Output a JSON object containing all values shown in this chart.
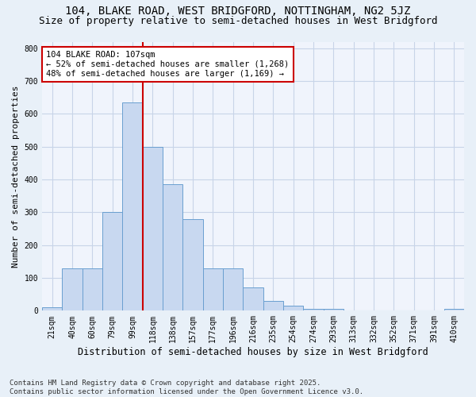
{
  "title_line1": "104, BLAKE ROAD, WEST BRIDGFORD, NOTTINGHAM, NG2 5JZ",
  "title_line2": "Size of property relative to semi-detached houses in West Bridgford",
  "xlabel": "Distribution of semi-detached houses by size in West Bridgford",
  "ylabel": "Number of semi-detached properties",
  "footer": "Contains HM Land Registry data © Crown copyright and database right 2025.\nContains public sector information licensed under the Open Government Licence v3.0.",
  "bins": [
    "21sqm",
    "40sqm",
    "60sqm",
    "79sqm",
    "99sqm",
    "118sqm",
    "138sqm",
    "157sqm",
    "177sqm",
    "196sqm",
    "216sqm",
    "235sqm",
    "254sqm",
    "274sqm",
    "293sqm",
    "313sqm",
    "332sqm",
    "352sqm",
    "371sqm",
    "391sqm",
    "410sqm"
  ],
  "values": [
    10,
    130,
    130,
    300,
    635,
    500,
    385,
    280,
    130,
    130,
    70,
    30,
    15,
    5,
    5,
    0,
    0,
    0,
    0,
    0,
    5
  ],
  "bar_color": "#c8d8f0",
  "bar_edge_color": "#6a9fd0",
  "marker_label": "104 BLAKE ROAD: 107sqm\n← 52% of semi-detached houses are smaller (1,268)\n48% of semi-detached houses are larger (1,169) →",
  "vline_color": "#cc0000",
  "annotation_box_color": "#ffffff",
  "annotation_box_edge": "#cc0000",
  "vline_x": 4.5,
  "ylim": [
    0,
    820
  ],
  "yticks": [
    0,
    100,
    200,
    300,
    400,
    500,
    600,
    700,
    800
  ],
  "background_color": "#e8f0f8",
  "grid_color": "#c8d4e8",
  "title1_fontsize": 10,
  "title2_fontsize": 9,
  "xlabel_fontsize": 8.5,
  "ylabel_fontsize": 8,
  "tick_fontsize": 7,
  "annot_fontsize": 7.5,
  "footer_fontsize": 6.5
}
